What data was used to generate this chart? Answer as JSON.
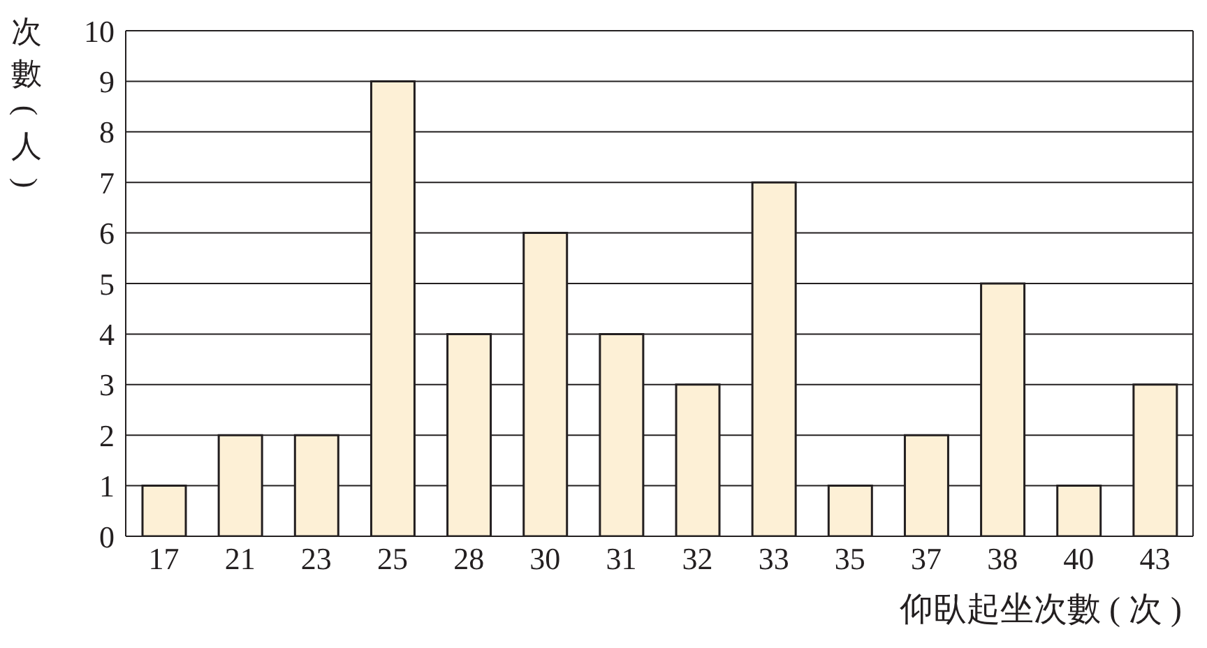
{
  "chart_data": {
    "type": "bar",
    "xlabel": "仰臥起坐次數 ( 次 )",
    "ylabel": "次數(人)",
    "categories": [
      "17",
      "21",
      "23",
      "25",
      "28",
      "30",
      "31",
      "32",
      "33",
      "35",
      "37",
      "38",
      "40",
      "43"
    ],
    "values": [
      1,
      2,
      2,
      9,
      4,
      6,
      4,
      3,
      7,
      1,
      2,
      5,
      1,
      3
    ],
    "color": "#fdf0d6",
    "ylim": [
      0,
      10
    ],
    "yticks": [
      0,
      1,
      2,
      3,
      4,
      5,
      6,
      7,
      8,
      9,
      10
    ],
    "grid": "y"
  }
}
